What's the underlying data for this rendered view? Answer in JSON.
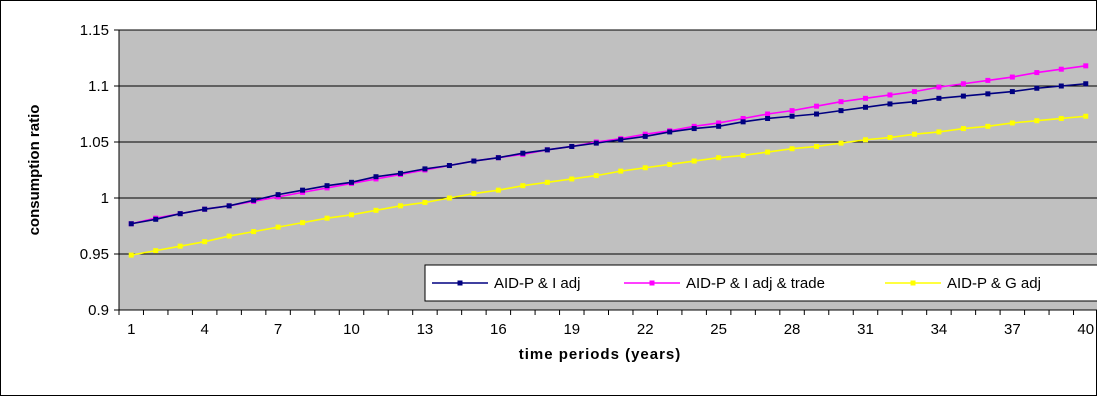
{
  "chart_data": {
    "type": "line",
    "title": "",
    "xlabel": "time periods (years)",
    "ylabel": "consumption ratio",
    "x": [
      1,
      2,
      3,
      4,
      5,
      6,
      7,
      8,
      9,
      10,
      11,
      12,
      13,
      14,
      15,
      16,
      17,
      18,
      19,
      20,
      21,
      22,
      23,
      24,
      25,
      26,
      27,
      28,
      29,
      30,
      31,
      32,
      33,
      34,
      35,
      36,
      37,
      38,
      39,
      40
    ],
    "x_tick_labels": [
      "1",
      "4",
      "7",
      "10",
      "13",
      "16",
      "19",
      "22",
      "25",
      "28",
      "31",
      "34",
      "37",
      "40"
    ],
    "x_tick_values": [
      1,
      4,
      7,
      10,
      13,
      16,
      19,
      22,
      25,
      28,
      31,
      34,
      37,
      40
    ],
    "ylim": [
      0.9,
      1.15
    ],
    "y_tick_values": [
      0.9,
      0.95,
      1.0,
      1.05,
      1.1,
      1.15
    ],
    "y_tick_labels": [
      "0.9",
      "0.95",
      "1",
      "1.05",
      "1.1",
      "1.15"
    ],
    "grid": "horizontal",
    "plot_background": "#c0c0c0",
    "legend_position": "bottom-right",
    "series": [
      {
        "name": "AID-P & I adj",
        "color": "#000080",
        "marker": "square",
        "values": [
          0.977,
          0.981,
          0.986,
          0.99,
          0.993,
          0.998,
          1.003,
          1.007,
          1.011,
          1.014,
          1.019,
          1.022,
          1.026,
          1.029,
          1.033,
          1.036,
          1.04,
          1.043,
          1.046,
          1.049,
          1.052,
          1.055,
          1.059,
          1.062,
          1.064,
          1.068,
          1.071,
          1.073,
          1.075,
          1.078,
          1.081,
          1.084,
          1.086,
          1.089,
          1.091,
          1.093,
          1.095,
          1.098,
          1.1,
          1.102
        ]
      },
      {
        "name": "AID-P & I adj & trade",
        "color": "#ff00ff",
        "marker": "square",
        "values": [
          0.977,
          0.982,
          0.986,
          0.99,
          0.993,
          0.997,
          1.001,
          1.005,
          1.009,
          1.013,
          1.017,
          1.021,
          1.025,
          1.029,
          1.033,
          1.036,
          1.039,
          1.043,
          1.046,
          1.05,
          1.053,
          1.057,
          1.06,
          1.064,
          1.067,
          1.071,
          1.075,
          1.078,
          1.082,
          1.086,
          1.089,
          1.092,
          1.095,
          1.099,
          1.102,
          1.105,
          1.108,
          1.112,
          1.115,
          1.118
        ]
      },
      {
        "name": "AID-P & G adj",
        "color": "#ffff00",
        "marker": "square",
        "values": [
          0.949,
          0.953,
          0.957,
          0.961,
          0.966,
          0.97,
          0.974,
          0.978,
          0.982,
          0.985,
          0.989,
          0.993,
          0.996,
          1.0,
          1.004,
          1.007,
          1.011,
          1.014,
          1.017,
          1.02,
          1.024,
          1.027,
          1.03,
          1.033,
          1.036,
          1.038,
          1.041,
          1.044,
          1.046,
          1.049,
          1.052,
          1.054,
          1.057,
          1.059,
          1.062,
          1.064,
          1.067,
          1.069,
          1.071,
          1.073
        ]
      }
    ]
  }
}
